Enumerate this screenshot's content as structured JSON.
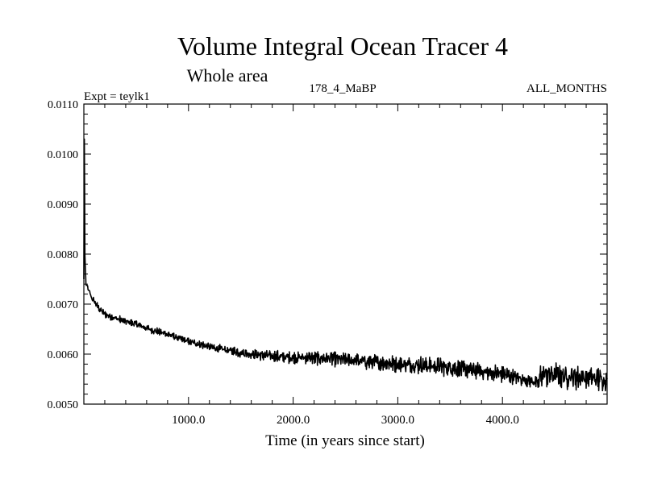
{
  "chart_data": {
    "type": "line",
    "title": "Volume Integral Ocean Tracer 4",
    "subtitle": "Whole area",
    "experiment_label": "Expt = teylk1",
    "run_label": "178_4_MaBP",
    "period_label": "ALL_MONTHS",
    "xlabel": "Time (in years since start)",
    "ylabel": "",
    "xlim": [
      0,
      5000
    ],
    "ylim": [
      0.005,
      0.011
    ],
    "x_ticks": [
      {
        "value": 1000,
        "label": "1000.0"
      },
      {
        "value": 2000,
        "label": "2000.0"
      },
      {
        "value": 3000,
        "label": "3000.0"
      },
      {
        "value": 4000,
        "label": "4000.0"
      }
    ],
    "y_ticks": [
      {
        "value": 0.005,
        "label": "0.0050"
      },
      {
        "value": 0.006,
        "label": "0.0060"
      },
      {
        "value": 0.007,
        "label": "0.0070"
      },
      {
        "value": 0.008,
        "label": "0.0080"
      },
      {
        "value": 0.009,
        "label": "0.0090"
      },
      {
        "value": 0.01,
        "label": "0.0100"
      },
      {
        "value": 0.011,
        "label": "0.0110"
      }
    ],
    "series": [
      {
        "name": "Volume integral ocean tracer 4",
        "color": "#000000",
        "x": [
          0,
          5,
          10,
          20,
          40,
          60,
          80,
          100,
          150,
          200,
          300,
          400,
          500,
          600,
          700,
          800,
          900,
          1000,
          1100,
          1200,
          1300,
          1400,
          1500,
          1600,
          1700,
          1800,
          1900,
          2000,
          2100,
          2200,
          2300,
          2400,
          2500,
          2600,
          2700,
          2800,
          2900,
          3000,
          3100,
          3200,
          3300,
          3400,
          3500,
          3600,
          3700,
          3800,
          3900,
          4000,
          4100,
          4200,
          4300,
          4350,
          4360,
          4400,
          4500,
          4600,
          4700,
          4800,
          4900,
          5000
        ],
        "values": [
          0.0075,
          0.0103,
          0.008,
          0.0074,
          0.0073,
          0.0072,
          0.0071,
          0.00705,
          0.0069,
          0.0068,
          0.00672,
          0.00665,
          0.0066,
          0.00652,
          0.00645,
          0.0064,
          0.00632,
          0.00625,
          0.0062,
          0.00615,
          0.0061,
          0.00607,
          0.00603,
          0.006,
          0.00598,
          0.00596,
          0.00594,
          0.00593,
          0.00593,
          0.00592,
          0.00592,
          0.0059,
          0.00588,
          0.00587,
          0.00585,
          0.00583,
          0.00582,
          0.0058,
          0.0058,
          0.00578,
          0.00577,
          0.00575,
          0.00573,
          0.0057,
          0.00568,
          0.00565,
          0.00562,
          0.0056,
          0.00555,
          0.0055,
          0.00545,
          0.0054,
          0.0056,
          0.0056,
          0.00558,
          0.00556,
          0.00555,
          0.00553,
          0.0055,
          0.0055
        ],
        "noise_amplitude": [
          5e-05,
          5e-05,
          5e-05,
          5e-05,
          5e-05,
          5e-05,
          5e-05,
          5e-05,
          5e-05,
          5e-05,
          5e-05,
          5e-05,
          5e-05,
          5e-05,
          5e-05,
          5e-05,
          5e-05,
          5e-05,
          5e-05,
          6e-05,
          6e-05,
          6e-05,
          7e-05,
          7e-05,
          7e-05,
          8e-05,
          8e-05,
          8e-05,
          8e-05,
          9e-05,
          0.0001,
          0.0001,
          0.0001,
          0.0001,
          0.00011,
          0.00011,
          0.00011,
          0.00012,
          0.00012,
          0.00012,
          0.00012,
          0.00012,
          0.00012,
          0.00012,
          0.00012,
          0.00012,
          0.00012,
          0.00012,
          0.0001,
          0.0001,
          8e-05,
          8e-05,
          0.00018,
          0.00018,
          0.00018,
          0.00018,
          0.00018,
          0.00018,
          0.00018,
          0.00018
        ]
      }
    ]
  }
}
